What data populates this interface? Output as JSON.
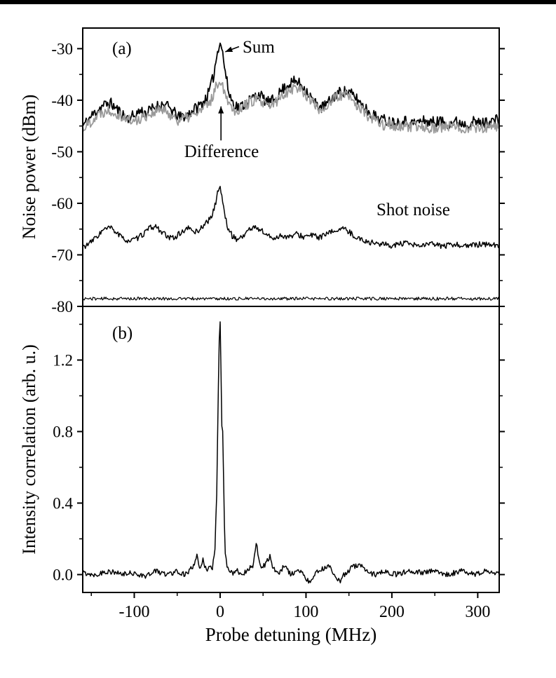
{
  "figure": {
    "xlabel": "Probe detuning (MHz)",
    "xlim": [
      -160,
      325
    ],
    "x_major_ticks": [
      -100,
      0,
      100,
      200,
      300
    ],
    "x_tick_labels": [
      "-100",
      "0",
      "100",
      "200",
      "300"
    ],
    "x_minor_step": 50,
    "background": "#ffffff",
    "axis_color": "#000000"
  },
  "chart_data": [
    {
      "type": "line",
      "panel_label": "(a)",
      "ylabel": "Noise power (dBm)",
      "ylim": [
        -80,
        -26
      ],
      "y_major_ticks": [
        -30,
        -40,
        -50,
        -60,
        -70,
        -80
      ],
      "y_tick_labels": [
        "-30",
        "-40",
        "-50",
        "-60",
        "-70",
        "-80"
      ],
      "y_minor_step": 5,
      "annotations": [
        {
          "text": "Sum",
          "arrow": {
            "from_x": 22,
            "from_y": -29.6,
            "to_x": 6,
            "to_y": -30.6
          }
        },
        {
          "text": "Difference",
          "arrow": {
            "from_x": 1,
            "from_y": -47.8,
            "to_x": 1,
            "to_y": -41.2
          }
        },
        {
          "text": "Shot noise"
        }
      ],
      "series": [
        {
          "name": "Sum",
          "color": "#000000",
          "width": 1.8,
          "noise": 1.1,
          "seed": 11,
          "points": [
            [
              -160,
              -45
            ],
            [
              -152,
              -43.5
            ],
            [
              -144,
              -42
            ],
            [
              -136,
              -41
            ],
            [
              -128,
              -40.5
            ],
            [
              -122,
              -41.5
            ],
            [
              -115,
              -42.5
            ],
            [
              -108,
              -43.5
            ],
            [
              -100,
              -43
            ],
            [
              -93,
              -42
            ],
            [
              -86,
              -42.5
            ],
            [
              -78,
              -41.5
            ],
            [
              -70,
              -40.8
            ],
            [
              -63,
              -41
            ],
            [
              -56,
              -42
            ],
            [
              -48,
              -43.3
            ],
            [
              -40,
              -43
            ],
            [
              -32,
              -42
            ],
            [
              -24,
              -41
            ],
            [
              -18,
              -40
            ],
            [
              -13,
              -38.5
            ],
            [
              -8,
              -35.5
            ],
            [
              -4,
              -31.5
            ],
            [
              -1,
              -28.8
            ],
            [
              1,
              -28.9
            ],
            [
              3,
              -31
            ],
            [
              6,
              -34.5
            ],
            [
              10,
              -38.5
            ],
            [
              15,
              -40.5
            ],
            [
              22,
              -41.5
            ],
            [
              30,
              -40.5
            ],
            [
              38,
              -39.5
            ],
            [
              45,
              -38.8
            ],
            [
              52,
              -40
            ],
            [
              58,
              -40.5
            ],
            [
              65,
              -39.5
            ],
            [
              72,
              -38
            ],
            [
              80,
              -36.8
            ],
            [
              88,
              -36.3
            ],
            [
              95,
              -37
            ],
            [
              102,
              -38.5
            ],
            [
              110,
              -40.5
            ],
            [
              118,
              -41.5
            ],
            [
              126,
              -40.5
            ],
            [
              134,
              -39
            ],
            [
              142,
              -38.2
            ],
            [
              150,
              -38.5
            ],
            [
              158,
              -39.5
            ],
            [
              166,
              -41
            ],
            [
              175,
              -42.5
            ],
            [
              185,
              -43.5
            ],
            [
              195,
              -44
            ],
            [
              205,
              -44.3
            ],
            [
              215,
              -44
            ],
            [
              225,
              -44.5
            ],
            [
              235,
              -44
            ],
            [
              245,
              -44.3
            ],
            [
              255,
              -44
            ],
            [
              265,
              -44.5
            ],
            [
              275,
              -44.2
            ],
            [
              285,
              -44.5
            ],
            [
              295,
              -44.2
            ],
            [
              305,
              -44.5
            ],
            [
              315,
              -44
            ],
            [
              325,
              -43.8
            ]
          ]
        },
        {
          "name": "Difference",
          "color": "#9a9a9a",
          "width": 1.8,
          "noise": 1.1,
          "seed": 22,
          "points": [
            [
              -160,
              -45.5
            ],
            [
              -150,
              -44
            ],
            [
              -140,
              -42.5
            ],
            [
              -130,
              -41.8
            ],
            [
              -120,
              -42.5
            ],
            [
              -110,
              -43.5
            ],
            [
              -100,
              -44.2
            ],
            [
              -90,
              -43.2
            ],
            [
              -80,
              -42.5
            ],
            [
              -70,
              -41.8
            ],
            [
              -60,
              -42.5
            ],
            [
              -50,
              -43.8
            ],
            [
              -40,
              -43.5
            ],
            [
              -30,
              -42.8
            ],
            [
              -22,
              -42
            ],
            [
              -15,
              -41
            ],
            [
              -10,
              -39.8
            ],
            [
              -6,
              -38
            ],
            [
              -2,
              -36.3
            ],
            [
              0,
              -36
            ],
            [
              3,
              -37.2
            ],
            [
              7,
              -39
            ],
            [
              12,
              -41
            ],
            [
              18,
              -42
            ],
            [
              25,
              -41.5
            ],
            [
              33,
              -40.5
            ],
            [
              42,
              -39.8
            ],
            [
              50,
              -40.8
            ],
            [
              58,
              -41.2
            ],
            [
              66,
              -40.2
            ],
            [
              74,
              -38.8
            ],
            [
              82,
              -37.8
            ],
            [
              90,
              -37.5
            ],
            [
              98,
              -38.5
            ],
            [
              106,
              -40
            ],
            [
              114,
              -41.8
            ],
            [
              122,
              -41.5
            ],
            [
              130,
              -40
            ],
            [
              138,
              -39.2
            ],
            [
              146,
              -39
            ],
            [
              154,
              -40
            ],
            [
              162,
              -41.5
            ],
            [
              172,
              -43
            ],
            [
              182,
              -44.2
            ],
            [
              192,
              -44.8
            ],
            [
              205,
              -45
            ],
            [
              220,
              -45.3
            ],
            [
              235,
              -45
            ],
            [
              250,
              -45.4
            ],
            [
              265,
              -45.1
            ],
            [
              280,
              -45.4
            ],
            [
              295,
              -45.2
            ],
            [
              310,
              -45.4
            ],
            [
              325,
              -45.2
            ]
          ]
        },
        {
          "name": "Shot noise",
          "color": "#000000",
          "width": 1.5,
          "noise": 0.55,
          "seed": 33,
          "points": [
            [
              -160,
              -68.5
            ],
            [
              -152,
              -67.8
            ],
            [
              -144,
              -66.5
            ],
            [
              -136,
              -65.2
            ],
            [
              -128,
              -64.7
            ],
            [
              -121,
              -65.6
            ],
            [
              -114,
              -66.8
            ],
            [
              -106,
              -67.3
            ],
            [
              -98,
              -67
            ],
            [
              -90,
              -66
            ],
            [
              -82,
              -64.8
            ],
            [
              -75,
              -64.5
            ],
            [
              -68,
              -65.5
            ],
            [
              -60,
              -66.8
            ],
            [
              -52,
              -66.5
            ],
            [
              -44,
              -65.5
            ],
            [
              -36,
              -64.8
            ],
            [
              -29,
              -65.6
            ],
            [
              -23,
              -65
            ],
            [
              -17,
              -63.8
            ],
            [
              -11,
              -63
            ],
            [
              -6,
              -60.5
            ],
            [
              -2,
              -57.2
            ],
            [
              0,
              -56.8
            ],
            [
              2,
              -58.5
            ],
            [
              5,
              -62
            ],
            [
              9,
              -64.8
            ],
            [
              14,
              -66.3
            ],
            [
              20,
              -67
            ],
            [
              27,
              -66.3
            ],
            [
              34,
              -65
            ],
            [
              41,
              -64.7
            ],
            [
              48,
              -65.2
            ],
            [
              55,
              -66.3
            ],
            [
              63,
              -66.8
            ],
            [
              71,
              -66.2
            ],
            [
              80,
              -66.6
            ],
            [
              89,
              -66
            ],
            [
              98,
              -66.5
            ],
            [
              107,
              -66.2
            ],
            [
              116,
              -66.6
            ],
            [
              125,
              -66
            ],
            [
              133,
              -65.3
            ],
            [
              141,
              -64.9
            ],
            [
              149,
              -65.4
            ],
            [
              157,
              -66.4
            ],
            [
              166,
              -67.2
            ],
            [
              176,
              -67.6
            ],
            [
              188,
              -67.9
            ],
            [
              200,
              -68.2
            ],
            [
              215,
              -67.8
            ],
            [
              230,
              -68.3
            ],
            [
              245,
              -67.9
            ],
            [
              260,
              -68.3
            ],
            [
              275,
              -68
            ],
            [
              290,
              -68.3
            ],
            [
              305,
              -67.9
            ],
            [
              325,
              -68.2
            ]
          ]
        },
        {
          "name": "floor",
          "color": "#000000",
          "width": 1.2,
          "noise": 0.3,
          "seed": 44,
          "points": [
            [
              -160,
              -78.5
            ],
            [
              325,
              -78.5
            ]
          ]
        }
      ]
    },
    {
      "type": "line",
      "panel_label": "(b)",
      "ylabel": "Intensity correlation (arb. u.)",
      "ylim": [
        -0.1,
        1.5
      ],
      "y_major_ticks": [
        0.0,
        0.4,
        0.8,
        1.2
      ],
      "y_tick_labels": [
        "0.0",
        "0.4",
        "0.8",
        "1.2"
      ],
      "y_minor_step": 0.2,
      "annotations": [],
      "series": [
        {
          "name": "intensity correlation",
          "color": "#000000",
          "width": 1.5,
          "noise": 0.015,
          "seed": 55,
          "points": [
            [
              -160,
              0.01
            ],
            [
              -145,
              0.0
            ],
            [
              -130,
              0.02
            ],
            [
              -115,
              0.0
            ],
            [
              -100,
              0.01
            ],
            [
              -88,
              -0.01
            ],
            [
              -75,
              0.02
            ],
            [
              -62,
              0.0
            ],
            [
              -50,
              0.02
            ],
            [
              -40,
              0.0
            ],
            [
              -32,
              0.04
            ],
            [
              -27,
              0.1
            ],
            [
              -24,
              0.03
            ],
            [
              -20,
              0.08
            ],
            [
              -16,
              0.02
            ],
            [
              -12,
              0.06
            ],
            [
              -9,
              0.03
            ],
            [
              -6,
              0.15
            ],
            [
              -4,
              0.45
            ],
            [
              -2,
              1.05
            ],
            [
              -1,
              1.3
            ],
            [
              0,
              1.4
            ],
            [
              1,
              1.15
            ],
            [
              2,
              0.82
            ],
            [
              3,
              0.8
            ],
            [
              4,
              0.55
            ],
            [
              5,
              0.28
            ],
            [
              6,
              0.12
            ],
            [
              8,
              0.05
            ],
            [
              11,
              0.02
            ],
            [
              15,
              0.0
            ],
            [
              20,
              0.02
            ],
            [
              26,
              0.0
            ],
            [
              32,
              0.03
            ],
            [
              38,
              0.05
            ],
            [
              42,
              0.18
            ],
            [
              45,
              0.1
            ],
            [
              48,
              0.03
            ],
            [
              53,
              0.06
            ],
            [
              58,
              0.1
            ],
            [
              62,
              0.03
            ],
            [
              68,
              0.01
            ],
            [
              75,
              0.05
            ],
            [
              82,
              0.0
            ],
            [
              90,
              0.02
            ],
            [
              98,
              0.0
            ],
            [
              104,
              -0.05
            ],
            [
              110,
              0.0
            ],
            [
              118,
              0.03
            ],
            [
              126,
              0.05
            ],
            [
              133,
              0.0
            ],
            [
              139,
              -0.04
            ],
            [
              146,
              0.01
            ],
            [
              154,
              0.04
            ],
            [
              162,
              0.06
            ],
            [
              170,
              0.02
            ],
            [
              180,
              0.0
            ],
            [
              192,
              0.02
            ],
            [
              205,
              0.0
            ],
            [
              220,
              0.02
            ],
            [
              235,
              0.01
            ],
            [
              250,
              0.02
            ],
            [
              265,
              0.0
            ],
            [
              280,
              0.02
            ],
            [
              295,
              0.0
            ],
            [
              310,
              0.02
            ],
            [
              325,
              0.01
            ]
          ]
        }
      ]
    }
  ]
}
